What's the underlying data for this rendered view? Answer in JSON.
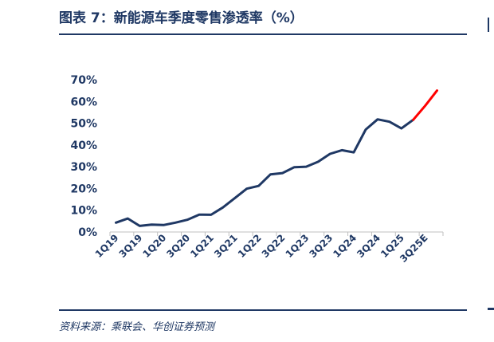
{
  "title": "图表 7：新能源车季度零售渗透率（%）",
  "source": "资料来源：乘联会、华创证券预测",
  "colors": {
    "actual": "#1f3864",
    "forecast": "#ff0000",
    "axis": "#bfbfbf",
    "text": "#1f3864"
  },
  "chart_data": {
    "type": "line",
    "title": "新能源车季度零售渗透率（%）",
    "xlabel": "",
    "ylabel": "",
    "ylim": [
      0,
      70
    ],
    "yticks": [
      "0%",
      "10%",
      "20%",
      "30%",
      "40%",
      "50%",
      "60%",
      "70%"
    ],
    "x": [
      "1Q19",
      "2Q19",
      "3Q19",
      "4Q19",
      "1Q20",
      "2Q20",
      "3Q20",
      "4Q20",
      "1Q21",
      "2Q21",
      "3Q21",
      "4Q21",
      "1Q22",
      "2Q22",
      "3Q22",
      "4Q22",
      "1Q23",
      "2Q23",
      "3Q23",
      "4Q23",
      "1Q24",
      "2Q24",
      "3Q24",
      "4Q24",
      "1Q25",
      "2Q25",
      "3Q25E",
      "4Q25E"
    ],
    "xtick_labels": [
      "1Q19",
      "3Q19",
      "1Q20",
      "3Q20",
      "1Q21",
      "3Q21",
      "1Q22",
      "3Q22",
      "1Q23",
      "3Q23",
      "1Q24",
      "3Q24",
      "1Q25",
      "3Q25E"
    ],
    "grid": false,
    "legend": "none",
    "series": [
      {
        "values": [
          4.3,
          6.2,
          2.8,
          3.4,
          3.2,
          4.3,
          5.6,
          8.0,
          7.9,
          11.3,
          15.6,
          19.9,
          21.2,
          26.5,
          27.1,
          29.8,
          30.0,
          32.3,
          35.9,
          37.6,
          36.6,
          47.1,
          51.8,
          50.7,
          47.6,
          51.6,
          null,
          null
        ]
      },
      {
        "values": [
          null,
          null,
          null,
          null,
          null,
          null,
          null,
          null,
          null,
          null,
          null,
          null,
          null,
          null,
          null,
          null,
          null,
          null,
          null,
          null,
          null,
          null,
          null,
          null,
          null,
          51.6,
          58.0,
          65.0
        ]
      }
    ]
  }
}
